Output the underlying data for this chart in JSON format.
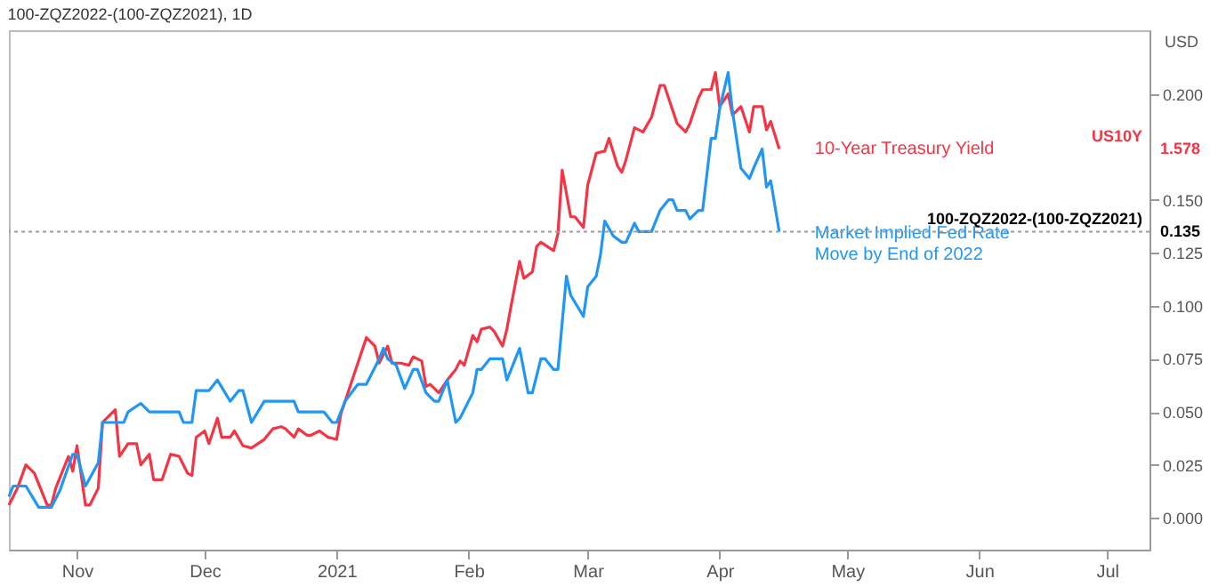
{
  "chart_data": {
    "type": "line",
    "title": "100-ZQZ2022-(100-ZQZ2021), 1D",
    "ylabel": "USD",
    "xlim": [
      "2020-10-16",
      "2021-07-11"
    ],
    "xticks": [
      {
        "value": "2020-11-01",
        "label": "Nov"
      },
      {
        "value": "2020-12-01",
        "label": "Dec"
      },
      {
        "value": "2021-01-01",
        "label": "2021"
      },
      {
        "value": "2021-02-01",
        "label": "Feb"
      },
      {
        "value": "2021-03-01",
        "label": "Mar"
      },
      {
        "value": "2021-04-01",
        "label": "Apr"
      },
      {
        "value": "2021-05-01",
        "label": "May"
      },
      {
        "value": "2021-06-01",
        "label": "Jun"
      },
      {
        "value": "2021-07-01",
        "label": "Jul"
      }
    ],
    "ylim": [
      -0.015,
      0.23
    ],
    "yticks": [
      {
        "value": 0,
        "label": "0.000"
      },
      {
        "value": 0.025,
        "label": "0.025"
      },
      {
        "value": 0.05,
        "label": "0.050"
      },
      {
        "value": 0.075,
        "label": "0.075"
      },
      {
        "value": 0.1,
        "label": "0.100"
      },
      {
        "value": 0.125,
        "label": "0.125"
      },
      {
        "value": 0.15,
        "label": "0.150"
      },
      {
        "value": 0.2,
        "label": "0.200"
      }
    ],
    "grid": false,
    "line_style": "solid",
    "marker": "none",
    "series": [
      {
        "name": "10-Year Treasury Yield",
        "color": "#f23645",
        "x": [
          "2020-10-16",
          "2020-10-18",
          "2020-10-20",
          "2020-10-22",
          "2020-10-25",
          "2020-10-26",
          "2020-10-27",
          "2020-10-30",
          "2020-10-31",
          "2020-11-01",
          "2020-11-03",
          "2020-11-04",
          "2020-11-06",
          "2020-11-07",
          "2020-11-10",
          "2020-11-11",
          "2020-11-13",
          "2020-11-15",
          "2020-11-16",
          "2020-11-18",
          "2020-11-19",
          "2020-11-21",
          "2020-11-23",
          "2020-11-25",
          "2020-11-27",
          "2020-11-28",
          "2020-11-29",
          "2020-12-01",
          "2020-12-02",
          "2020-12-04",
          "2020-12-05",
          "2020-12-07",
          "2020-12-08",
          "2020-12-10",
          "2020-12-12",
          "2020-12-15",
          "2020-12-17",
          "2020-12-19",
          "2020-12-20",
          "2020-12-22",
          "2020-12-23",
          "2020-12-25",
          "2020-12-26",
          "2020-12-28",
          "2020-12-30",
          "2021-01-01",
          "2021-01-02",
          "2021-01-05",
          "2021-01-08",
          "2021-01-10",
          "2021-01-11",
          "2021-01-13",
          "2021-01-14",
          "2021-01-16",
          "2021-01-18",
          "2021-01-19",
          "2021-01-21",
          "2021-01-22",
          "2021-01-23",
          "2021-01-25",
          "2021-01-27",
          "2021-01-29",
          "2021-01-30",
          "2021-01-31",
          "2021-02-02",
          "2021-02-03",
          "2021-02-04",
          "2021-02-06",
          "2021-02-07",
          "2021-02-09",
          "2021-02-10",
          "2021-02-11",
          "2021-02-13",
          "2021-02-14",
          "2021-02-16",
          "2021-02-17",
          "2021-02-18",
          "2021-02-21",
          "2021-02-22",
          "2021-02-23",
          "2021-02-25",
          "2021-02-26",
          "2021-02-28",
          "2021-03-01",
          "2021-03-03",
          "2021-03-05",
          "2021-03-06",
          "2021-03-08",
          "2021-03-09",
          "2021-03-10",
          "2021-03-12",
          "2021-03-14",
          "2021-03-16",
          "2021-03-18",
          "2021-03-19",
          "2021-03-20",
          "2021-03-22",
          "2021-03-24",
          "2021-03-25",
          "2021-03-27",
          "2021-03-28",
          "2021-03-30",
          "2021-03-31",
          "2021-04-01",
          "2021-04-03",
          "2021-04-04",
          "2021-04-06",
          "2021-04-08",
          "2021-04-09",
          "2021-04-11",
          "2021-04-12",
          "2021-04-13",
          "2021-04-15"
        ],
        "values": [
          0.006,
          0.014,
          0.025,
          0.021,
          0.006,
          0.006,
          0.014,
          0.029,
          0.022,
          0.034,
          0.006,
          0.006,
          0.014,
          0.045,
          0.051,
          0.029,
          0.035,
          0.035,
          0.025,
          0.03,
          0.018,
          0.018,
          0.03,
          0.029,
          0.021,
          0.02,
          0.038,
          0.041,
          0.035,
          0.047,
          0.038,
          0.038,
          0.041,
          0.034,
          0.033,
          0.037,
          0.042,
          0.043,
          0.042,
          0.038,
          0.042,
          0.039,
          0.039,
          0.041,
          0.038,
          0.037,
          0.049,
          0.067,
          0.085,
          0.081,
          0.073,
          0.081,
          0.073,
          0.073,
          0.072,
          0.076,
          0.074,
          0.062,
          0.063,
          0.059,
          0.065,
          0.07,
          0.074,
          0.072,
          0.086,
          0.083,
          0.089,
          0.09,
          0.088,
          0.081,
          0.089,
          0.1,
          0.121,
          0.113,
          0.116,
          0.128,
          0.13,
          0.126,
          0.134,
          0.164,
          0.142,
          0.142,
          0.137,
          0.157,
          0.172,
          0.173,
          0.179,
          0.166,
          0.163,
          0.169,
          0.184,
          0.182,
          0.189,
          0.204,
          0.204,
          0.198,
          0.186,
          0.182,
          0.186,
          0.198,
          0.202,
          0.202,
          0.21,
          0.194,
          0.2,
          0.19,
          0.194,
          0.182,
          0.194,
          0.194,
          0.183,
          0.187,
          0.174
        ]
      },
      {
        "name": "Market Implied Fed Rate Move by End of 2022",
        "color": "#2196f3",
        "x": [
          "2020-10-16",
          "2020-10-17",
          "2020-10-20",
          "2020-10-23",
          "2020-10-26",
          "2020-10-28",
          "2020-10-31",
          "2020-11-01",
          "2020-11-03",
          "2020-11-06",
          "2020-11-07",
          "2020-11-12",
          "2020-11-13",
          "2020-11-16",
          "2020-11-18",
          "2020-11-25",
          "2020-11-26",
          "2020-11-28",
          "2020-11-29",
          "2020-12-02",
          "2020-12-04",
          "2020-12-07",
          "2020-12-09",
          "2020-12-10",
          "2020-12-12",
          "2020-12-15",
          "2020-12-22",
          "2020-12-23",
          "2020-12-29",
          "2020-12-31",
          "2021-01-01",
          "2021-01-03",
          "2021-01-06",
          "2021-01-08",
          "2021-01-11",
          "2021-01-12",
          "2021-01-13",
          "2021-01-15",
          "2021-01-17",
          "2021-01-19",
          "2021-01-20",
          "2021-01-22",
          "2021-01-24",
          "2021-01-25",
          "2021-01-27",
          "2021-01-29",
          "2021-01-30",
          "2021-02-02",
          "2021-02-03",
          "2021-02-04",
          "2021-02-06",
          "2021-02-09",
          "2021-02-10",
          "2021-02-13",
          "2021-02-15",
          "2021-02-16",
          "2021-02-18",
          "2021-02-19",
          "2021-02-21",
          "2021-02-22",
          "2021-02-24",
          "2021-02-25",
          "2021-02-28",
          "2021-03-01",
          "2021-03-03",
          "2021-03-04",
          "2021-03-05",
          "2021-03-07",
          "2021-03-09",
          "2021-03-10",
          "2021-03-12",
          "2021-03-13",
          "2021-03-16",
          "2021-03-18",
          "2021-03-20",
          "2021-03-21",
          "2021-03-22",
          "2021-03-24",
          "2021-03-25",
          "2021-03-27",
          "2021-03-28",
          "2021-03-30",
          "2021-03-31",
          "2021-04-01",
          "2021-04-03",
          "2021-04-04",
          "2021-04-06",
          "2021-04-08",
          "2021-04-09",
          "2021-04-11",
          "2021-04-12",
          "2021-04-13",
          "2021-04-15"
        ],
        "values": [
          0.01,
          0.015,
          0.015,
          0.005,
          0.005,
          0.013,
          0.03,
          0.03,
          0.015,
          0.026,
          0.045,
          0.045,
          0.05,
          0.054,
          0.05,
          0.05,
          0.045,
          0.045,
          0.06,
          0.06,
          0.065,
          0.055,
          0.06,
          0.06,
          0.045,
          0.055,
          0.055,
          0.05,
          0.05,
          0.045,
          0.045,
          0.055,
          0.063,
          0.063,
          0.075,
          0.08,
          0.075,
          0.072,
          0.061,
          0.07,
          0.07,
          0.059,
          0.055,
          0.055,
          0.065,
          0.045,
          0.047,
          0.059,
          0.07,
          0.07,
          0.075,
          0.075,
          0.065,
          0.08,
          0.059,
          0.059,
          0.075,
          0.075,
          0.07,
          0.07,
          0.114,
          0.105,
          0.095,
          0.109,
          0.114,
          0.124,
          0.14,
          0.133,
          0.13,
          0.13,
          0.139,
          0.135,
          0.135,
          0.145,
          0.15,
          0.15,
          0.145,
          0.145,
          0.141,
          0.145,
          0.145,
          0.179,
          0.179,
          0.193,
          0.21,
          0.192,
          0.165,
          0.16,
          0.165,
          0.174,
          0.156,
          0.159,
          0.135
        ]
      }
    ],
    "ref_lines": [
      {
        "axis": "y",
        "value": 0.135,
        "label": "0.135",
        "color": "#9e9e9e",
        "line_style": "dotted"
      }
    ],
    "annotations": [
      "US10Y",
      "1.578",
      "100-ZQZ2022-(100-ZQZ2021)"
    ]
  }
}
